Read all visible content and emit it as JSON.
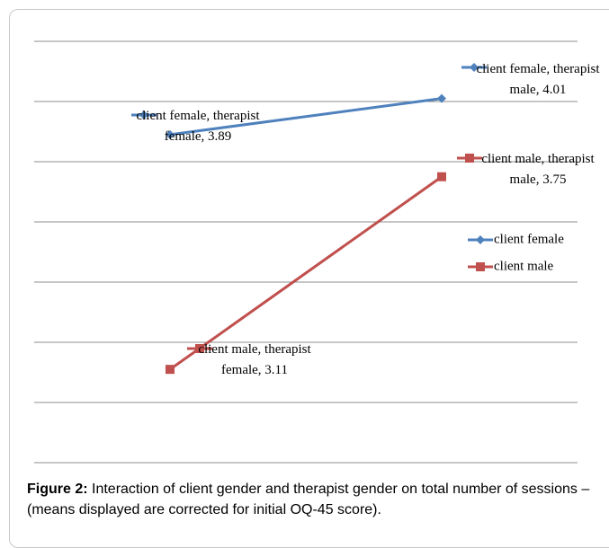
{
  "chart_data": {
    "type": "line",
    "categories": [
      null,
      null
    ],
    "series": [
      {
        "name": "client female",
        "color": "#4f81bd",
        "marker": "diamond",
        "values": [
          3.89,
          4.01
        ],
        "value_labels": [
          "client female, therapist female, 3.89",
          "client female, therapist male, 4.01"
        ]
      },
      {
        "name": "client male",
        "color": "#c0504d",
        "marker": "square",
        "values": [
          3.11,
          3.75
        ],
        "value_labels": [
          "client male, therapist female, 3.11",
          "client male, therapist male, 3.75"
        ]
      }
    ],
    "ylim": [
      2.8,
      4.2
    ],
    "yticks": [
      2.8,
      3.0,
      3.2,
      3.4,
      3.6,
      3.8,
      4.0,
      4.2
    ],
    "grid": true,
    "legend": "right"
  },
  "caption": {
    "label": "Figure 2:",
    "text": "Interaction of client gender and therapist gender on total number of sessions – (means displayed are corrected for initial OQ-45 score)."
  }
}
